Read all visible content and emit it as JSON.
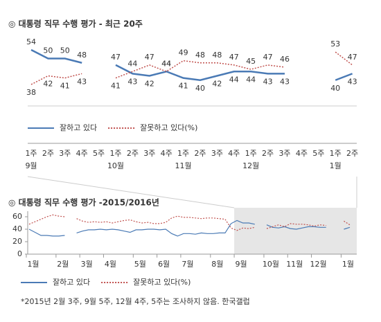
{
  "charts": [
    {
      "type": "line",
      "title": "◎  대통령 직무 수행 평가 - 최근 20주",
      "categories": [
        "1주",
        "2주",
        "3주",
        "4주",
        "5주",
        "1주",
        "2주",
        "3주",
        "4주",
        "1주",
        "2주",
        "3주",
        "4주",
        "1주",
        "2주",
        "3주",
        "4주",
        "5주",
        "1주",
        "2주"
      ],
      "category_groups": [
        "9월",
        null,
        null,
        null,
        null,
        "10월",
        null,
        null,
        null,
        "11월",
        null,
        null,
        null,
        "12월",
        null,
        null,
        null,
        null,
        "1월",
        null
      ],
      "series": [
        {
          "name": "잘하고 있다",
          "color": "#4a7ab5",
          "style": "solid",
          "values": [
            54,
            50,
            50,
            48,
            null,
            47,
            43,
            42,
            44,
            41,
            40,
            42,
            44,
            44,
            43,
            43,
            null,
            null,
            40,
            43
          ]
        },
        {
          "name": "잘못하고 있다(%)",
          "color": "#c0504d",
          "style": "dotted",
          "values": [
            38,
            42,
            41,
            43,
            null,
            41,
            44,
            47,
            44,
            49,
            48,
            48,
            47,
            45,
            47,
            46,
            null,
            null,
            53,
            47
          ]
        }
      ]
    },
    {
      "type": "line",
      "title": "◎  대통령 직무 수행 평가 -2015/2016년",
      "categories": [
        "1월",
        null,
        null,
        null,
        null,
        "2월",
        null,
        null,
        null,
        "3월",
        null,
        null,
        null,
        "4월",
        null,
        null,
        null,
        null,
        "5월",
        null,
        null,
        null,
        "6월",
        null,
        null,
        null,
        "7월",
        null,
        null,
        null,
        null,
        "8월",
        null,
        null,
        null,
        "9월",
        null,
        null,
        null,
        null,
        "10월",
        null,
        null,
        null,
        "11월",
        null,
        null,
        null,
        "12월",
        null,
        null,
        null,
        null,
        "1월",
        null
      ],
      "ylim": [
        0,
        70
      ],
      "yticks": [
        0,
        20,
        40,
        60
      ],
      "grid": false,
      "series": [
        {
          "name": "잘하고 있다",
          "color": "#4a7ab5",
          "style": "solid",
          "values": [
            40,
            35,
            30,
            30,
            29,
            29,
            30,
            null,
            34,
            37,
            39,
            39,
            40,
            39,
            40,
            39,
            37,
            35,
            39,
            39,
            40,
            40,
            39,
            40,
            33,
            29,
            33,
            33,
            32,
            34,
            33,
            33,
            34,
            34,
            49,
            54,
            50,
            50,
            48,
            null,
            47,
            43,
            42,
            44,
            41,
            40,
            42,
            44,
            44,
            43,
            43,
            null,
            null,
            40,
            43
          ]
        },
        {
          "name": "잘못하고 있다(%)",
          "color": "#c0504d",
          "style": "dotted",
          "values": [
            48,
            52,
            56,
            60,
            63,
            61,
            60,
            null,
            57,
            53,
            51,
            52,
            51,
            52,
            50,
            52,
            54,
            55,
            52,
            50,
            51,
            49,
            49,
            51,
            58,
            61,
            59,
            59,
            58,
            57,
            58,
            58,
            57,
            56,
            42,
            38,
            42,
            41,
            43,
            null,
            41,
            44,
            47,
            44,
            49,
            48,
            48,
            47,
            45,
            47,
            46,
            null,
            null,
            53,
            47
          ]
        }
      ]
    }
  ],
  "footnote": "*2015년 2월 3주, 9월 5주, 12월 4주, 5주는 조사하지 않음. 한국갤럽"
}
